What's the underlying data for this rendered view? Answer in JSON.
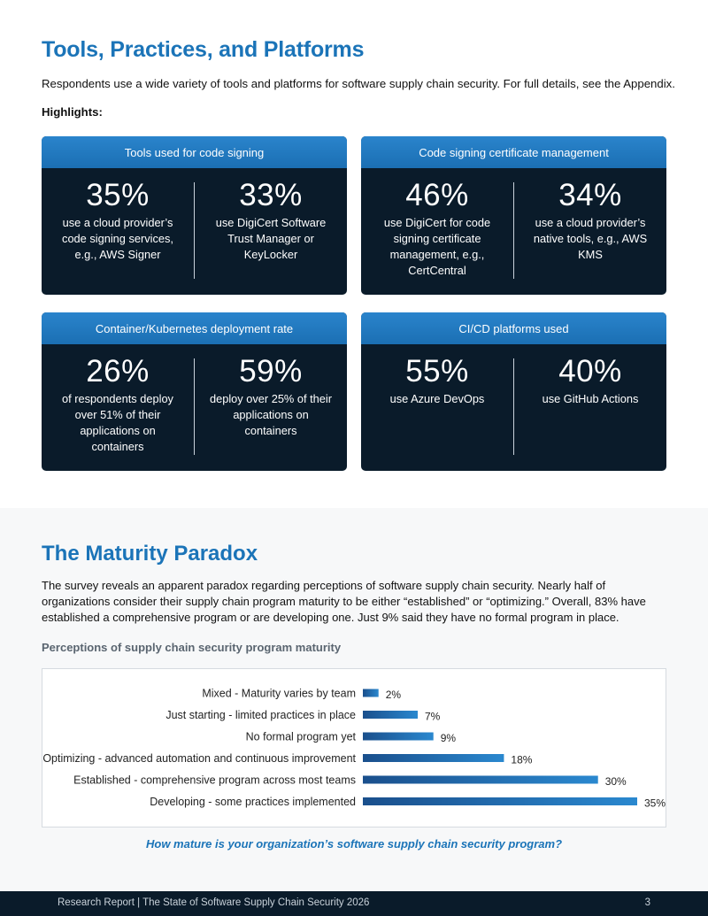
{
  "tools": {
    "title": "Tools, Practices, and Platforms",
    "intro": "Respondents use a wide variety of tools and platforms for software supply chain security. For full details, see the Appendix.",
    "highlights_label": "Highlights:",
    "cards": [
      {
        "header": "Tools used for code signing",
        "left": {
          "pct": "35%",
          "desc": "use a cloud provider’s code signing services, e.g., AWS Signer"
        },
        "right": {
          "pct": "33%",
          "desc": "use DigiCert Software Trust Manager or KeyLocker"
        }
      },
      {
        "header": "Code signing certificate management",
        "left": {
          "pct": "46%",
          "desc": "use DigiCert for code signing certificate management, e.g., CertCentral"
        },
        "right": {
          "pct": "34%",
          "desc": "use a cloud provider’s native tools, e.g., AWS KMS"
        }
      },
      {
        "header": "Container/Kubernetes deployment rate",
        "left": {
          "pct": "26%",
          "desc": "of respondents deploy over 51% of their applications on containers"
        },
        "right": {
          "pct": "59%",
          "desc": "deploy over 25% of their applications on containers"
        }
      },
      {
        "header": "CI/CD platforms used",
        "left": {
          "pct": "55%",
          "desc": "use Azure DevOps"
        },
        "right": {
          "pct": "40%",
          "desc": "use GitHub Actions"
        }
      }
    ]
  },
  "maturity": {
    "title": "The Maturity Paradox",
    "paragraph": "The survey reveals an apparent paradox regarding perceptions of software supply chain security. Nearly half of organizations consider their supply chain program maturity to be either “established” or “optimizing.” Overall, 83% have established a comprehensive program or are developing one. Just 9% said they have no formal program in place.",
    "chart_title": "Perceptions of supply chain security program maturity",
    "caption": "How mature is your organization’s software supply chain security program?"
  },
  "chart_data": {
    "type": "bar",
    "orientation": "horizontal",
    "title": "Perceptions of supply chain security program maturity",
    "xlabel": "",
    "ylabel": "",
    "categories": [
      "Mixed - Maturity varies by team",
      "Just starting - limited practices in place",
      "No formal program yet",
      "Optimizing - advanced automation and continuous improvement",
      "Established - comprehensive program across most teams",
      "Developing - some practices implemented"
    ],
    "values": [
      2,
      7,
      9,
      18,
      30,
      35
    ],
    "value_labels": [
      "2%",
      "7%",
      "9%",
      "18%",
      "30%",
      "35%"
    ],
    "unit": "%",
    "xlim": [
      0,
      35
    ],
    "grid": false,
    "bar_color_start": "#1a4f8c",
    "bar_color_end": "#2a88cf"
  },
  "footer": {
    "text": "Research Report | The State of Software Supply Chain Security 2026",
    "page": "3"
  },
  "colors": {
    "accent": "#1b74b8",
    "card_bg": "#0a1b2a",
    "card_header": "#1f77bd"
  }
}
